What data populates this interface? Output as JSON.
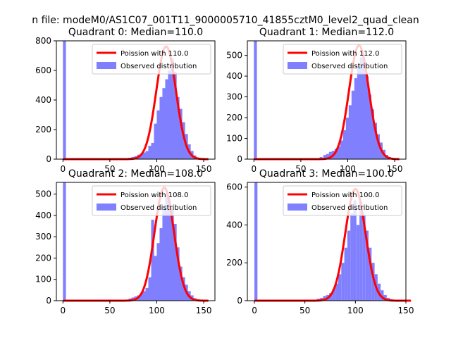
{
  "figure": {
    "suptitle": "n file: modeM0/AS1C07_001T11_9000005710_41855cztM0_level2_quad_clean"
  },
  "colors": {
    "poisson_line": "#ff0000",
    "observed_bars": "#8080ff",
    "axes": "#000000",
    "background": "#ffffff"
  },
  "chart_data": [
    {
      "type": "bar",
      "title": "Quadrant 0: Median=110.0",
      "xticks": [
        0,
        50,
        100,
        150
      ],
      "yticks": [
        0,
        200,
        400,
        600,
        800
      ],
      "xlim": [
        -7,
        162
      ],
      "ylim": [
        0,
        800
      ],
      "bin_width": 3.2,
      "legend": {
        "position": "top-right",
        "entries": [
          "Poission with 110.0",
          "Observed distribution"
        ]
      },
      "series": [
        {
          "name": "Poission with 110.0",
          "kind": "line",
          "mean": 110,
          "peak": 762
        },
        {
          "name": "Observed distribution",
          "kind": "hist",
          "bins": [
            [
              0,
              800
            ],
            [
              70,
              10
            ],
            [
              73,
              15
            ],
            [
              76,
              20
            ],
            [
              79,
              30
            ],
            [
              82,
              35
            ],
            [
              85,
              45
            ],
            [
              88,
              55
            ],
            [
              91,
              90
            ],
            [
              94,
              110
            ],
            [
              97,
              240
            ],
            [
              100,
              330
            ],
            [
              103,
              420
            ],
            [
              106,
              480
            ],
            [
              109,
              540
            ],
            [
              112,
              600
            ],
            [
              115,
              680
            ],
            [
              118,
              590
            ],
            [
              121,
              420
            ],
            [
              124,
              340
            ],
            [
              127,
              250
            ],
            [
              130,
              170
            ],
            [
              133,
              100
            ],
            [
              136,
              55
            ],
            [
              139,
              25
            ],
            [
              142,
              10
            ]
          ]
        }
      ]
    },
    {
      "type": "bar",
      "title": "Quadrant 1: Median=112.0",
      "xticks": [
        0,
        50,
        100,
        150
      ],
      "yticks": [
        0,
        100,
        200,
        300,
        400,
        500
      ],
      "xlim": [
        -7,
        162
      ],
      "ylim": [
        0,
        570
      ],
      "bin_width": 3.2,
      "legend": {
        "position": "top-right",
        "entries": [
          "Poission with 112.0",
          "Observed distribution"
        ]
      },
      "series": [
        {
          "name": "Poission with 112.0",
          "kind": "line",
          "mean": 112,
          "peak": 548
        },
        {
          "name": "Observed distribution",
          "kind": "hist",
          "bins": [
            [
              0,
              570
            ],
            [
              70,
              10
            ],
            [
              74,
              20
            ],
            [
              77,
              25
            ],
            [
              80,
              35
            ],
            [
              83,
              40
            ],
            [
              86,
              50
            ],
            [
              89,
              60
            ],
            [
              92,
              90
            ],
            [
              95,
              140
            ],
            [
              98,
              200
            ],
            [
              101,
              260
            ],
            [
              104,
              330
            ],
            [
              107,
              390
            ],
            [
              110,
              450
            ],
            [
              113,
              490
            ],
            [
              116,
              470
            ],
            [
              119,
              400
            ],
            [
              122,
              310
            ],
            [
              125,
              240
            ],
            [
              128,
              175
            ],
            [
              131,
              120
            ],
            [
              134,
              80
            ],
            [
              137,
              45
            ],
            [
              140,
              20
            ],
            [
              143,
              10
            ]
          ]
        }
      ]
    },
    {
      "type": "bar",
      "title": "Quadrant 2: Median=108.0",
      "xticks": [
        0,
        50,
        100,
        150
      ],
      "yticks": [
        0,
        100,
        200,
        300,
        400,
        500
      ],
      "xlim": [
        -7,
        162
      ],
      "ylim": [
        0,
        555
      ],
      "bin_width": 3.2,
      "legend": {
        "position": "top-right",
        "entries": [
          "Poission with 108.0",
          "Observed distribution"
        ]
      },
      "series": [
        {
          "name": "Poission with 108.0",
          "kind": "line",
          "mean": 108,
          "peak": 530
        },
        {
          "name": "Observed distribution",
          "kind": "hist",
          "bins": [
            [
              0,
              555
            ],
            [
              70,
              10
            ],
            [
              73,
              15
            ],
            [
              76,
              20
            ],
            [
              79,
              25
            ],
            [
              82,
              35
            ],
            [
              85,
              45
            ],
            [
              88,
              60
            ],
            [
              91,
              110
            ],
            [
              94,
              380
            ],
            [
              97,
              210
            ],
            [
              100,
              270
            ],
            [
              103,
              340
            ],
            [
              106,
              440
            ],
            [
              109,
              500
            ],
            [
              112,
              470
            ],
            [
              115,
              430
            ],
            [
              118,
              360
            ],
            [
              121,
              250
            ],
            [
              124,
              160
            ],
            [
              127,
              110
            ],
            [
              130,
              75
            ],
            [
              133,
              45
            ],
            [
              136,
              25
            ],
            [
              139,
              12
            ],
            [
              142,
              6
            ]
          ]
        }
      ]
    },
    {
      "type": "bar",
      "title": "Quadrant 3: Median=100.0",
      "xticks": [
        0,
        50,
        100,
        150
      ],
      "yticks": [
        0,
        200,
        400,
        600
      ],
      "xlim": [
        -7,
        150
      ],
      "ylim": [
        0,
        625
      ],
      "bin_width": 3.0,
      "legend": {
        "position": "top-right",
        "entries": [
          "Poission with 100.0",
          "Observed distribution"
        ]
      },
      "series": [
        {
          "name": "Poission with 100.0",
          "kind": "line",
          "mean": 100,
          "peak": 590
        },
        {
          "name": "Observed distribution",
          "kind": "hist",
          "bins": [
            [
              0,
              625
            ],
            [
              62,
              10
            ],
            [
              65,
              15
            ],
            [
              68,
              25
            ],
            [
              71,
              30
            ],
            [
              74,
              40
            ],
            [
              77,
              60
            ],
            [
              80,
              90
            ],
            [
              83,
              140
            ],
            [
              86,
              200
            ],
            [
              89,
              280
            ],
            [
              92,
              370
            ],
            [
              95,
              460
            ],
            [
              98,
              530
            ],
            [
              101,
              400
            ],
            [
              104,
              520
            ],
            [
              107,
              450
            ],
            [
              110,
              370
            ],
            [
              113,
              280
            ],
            [
              116,
              200
            ],
            [
              119,
              140
            ],
            [
              122,
              90
            ],
            [
              125,
              55
            ],
            [
              128,
              30
            ],
            [
              131,
              15
            ],
            [
              134,
              8
            ]
          ]
        }
      ]
    }
  ]
}
